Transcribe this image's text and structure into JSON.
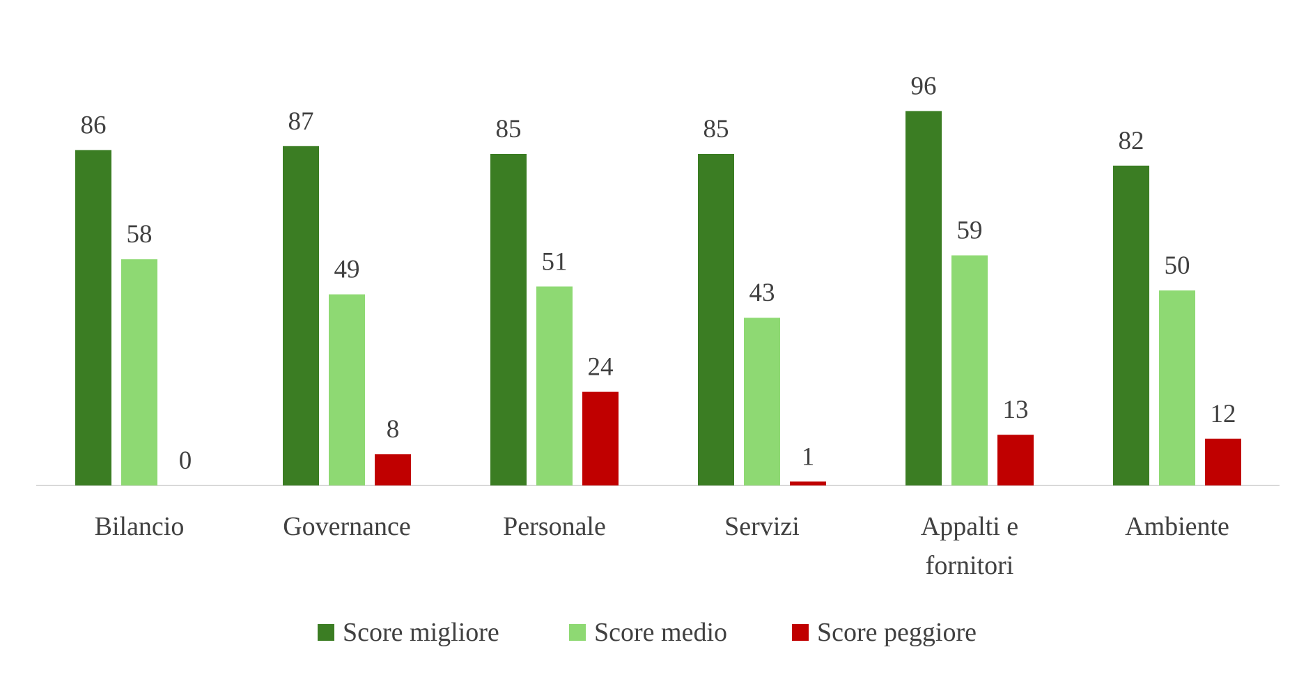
{
  "chart_data": {
    "type": "bar",
    "categories": [
      "Bilancio",
      "Governance",
      "Personale",
      "Servizi",
      "Appalti e fornitori",
      "Ambiente"
    ],
    "category_lines": [
      [
        "Bilancio"
      ],
      [
        "Governance"
      ],
      [
        "Personale"
      ],
      [
        "Servizi"
      ],
      [
        "Appalti e",
        "fornitori"
      ],
      [
        "Ambiente"
      ]
    ],
    "series": [
      {
        "name": "Score migliore",
        "values": [
          86,
          87,
          85,
          85,
          96,
          82
        ],
        "color": "#3B7D23"
      },
      {
        "name": "Score medio",
        "values": [
          58,
          49,
          51,
          43,
          59,
          50
        ],
        "color": "#8ED973"
      },
      {
        "name": "Score peggiore",
        "values": [
          0,
          8,
          24,
          1,
          13,
          12
        ],
        "color": "#C00000"
      }
    ],
    "title": "",
    "xlabel": "",
    "ylabel": "",
    "ylim": [
      0,
      100
    ],
    "grid": false,
    "data_labels": true,
    "legend": "bottom",
    "axis_color": "#D9D9D9",
    "label_color": "#404040"
  }
}
